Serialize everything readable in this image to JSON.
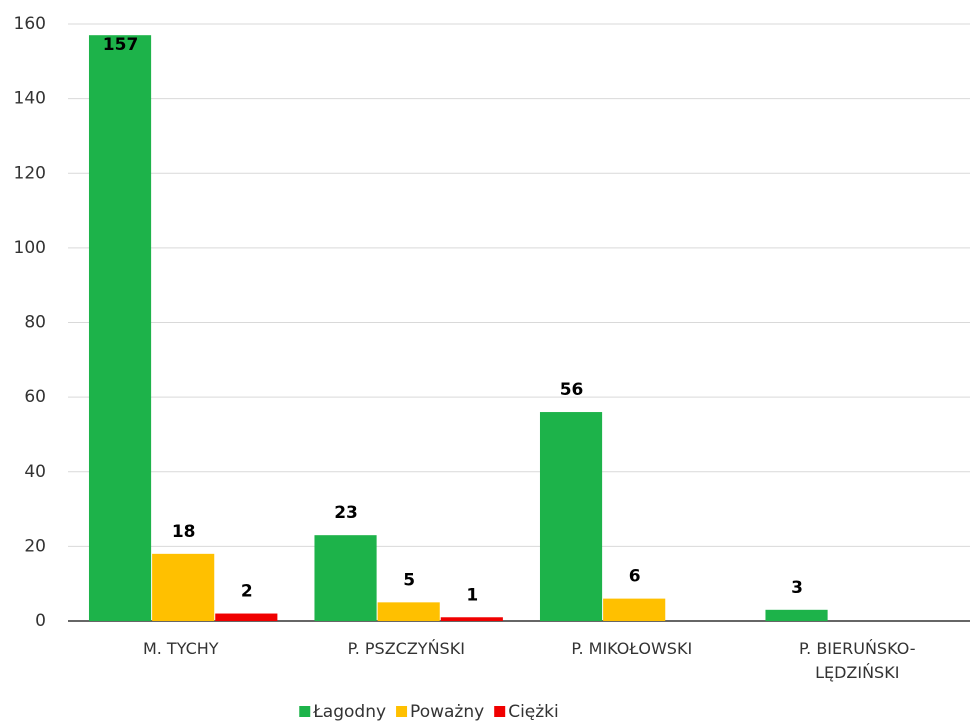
{
  "chart_data": {
    "type": "bar",
    "categories": [
      "M. TYCHY",
      "P. PSZCZYŃSKI",
      "P. MIKOŁOWSKI",
      "P. BIERUŃSKO-LĘDZIŃSKI"
    ],
    "series": [
      {
        "name": "Łagodny",
        "color": "#1db34a",
        "values": [
          157,
          23,
          56,
          3
        ]
      },
      {
        "name": "Poważny",
        "color": "#ffc000",
        "values": [
          18,
          5,
          6,
          null
        ]
      },
      {
        "name": "Ciężki",
        "color": "#f00000",
        "values": [
          2,
          1,
          null,
          null
        ]
      }
    ],
    "ylim": [
      0,
      160
    ],
    "yticks": [
      0,
      20,
      40,
      60,
      80,
      100,
      120,
      140,
      160
    ],
    "grid": true,
    "legend": "bottom"
  }
}
